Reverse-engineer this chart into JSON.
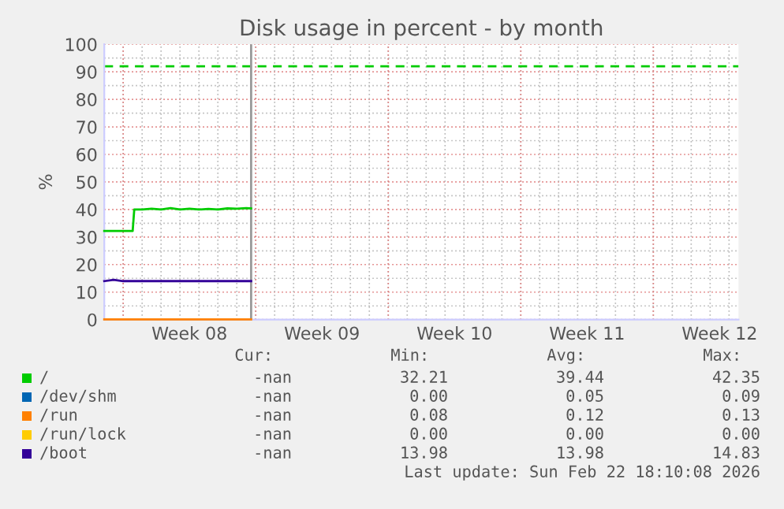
{
  "chart_data": {
    "type": "line",
    "title": "Disk usage in percent - by month",
    "ylabel": "%",
    "x": [
      "2026-02-15T00:00",
      "2026-02-15T12:00",
      "2026-02-16T00:00",
      "2026-02-16T12:00",
      "2026-02-16T14:00",
      "2026-02-17T00:00",
      "2026-02-17T12:00",
      "2026-02-18T00:00",
      "2026-02-18T12:00",
      "2026-02-19T00:00",
      "2026-02-19T12:00",
      "2026-02-20T00:00",
      "2026-02-20T12:00",
      "2026-02-21T00:00",
      "2026-02-21T12:00",
      "2026-02-22T00:00",
      "2026-02-22T12:00",
      "2026-02-22T18:10"
    ],
    "series": [
      {
        "name": "/",
        "color": "#00cc00",
        "values": [
          32.2,
          32.2,
          32.2,
          32.2,
          40,
          40,
          40.3,
          40,
          40.5,
          40,
          40.3,
          40,
          40.2,
          40,
          40.4,
          40.3,
          40.5,
          40.4
        ]
      },
      {
        "name": "/dev/shm",
        "color": "#0066b3",
        "values": [
          null,
          null,
          null,
          null,
          null,
          null,
          null,
          null,
          null,
          null,
          null,
          null,
          null,
          null,
          null,
          null,
          null,
          null
        ]
      },
      {
        "name": "/run",
        "color": "#ff8000",
        "values": [
          0.1,
          0.1,
          0.1,
          0.1,
          0.1,
          0.1,
          0.1,
          0.1,
          0.1,
          0.1,
          0.1,
          0.1,
          0.1,
          0.1,
          0.1,
          0.1,
          0.1,
          0.1
        ]
      },
      {
        "name": "/run/lock",
        "color": "#ffcc00",
        "values": [
          null,
          null,
          null,
          null,
          null,
          null,
          null,
          null,
          null,
          null,
          null,
          null,
          null,
          null,
          null,
          null,
          null,
          null
        ]
      },
      {
        "name": "/boot",
        "color": "#330099",
        "values": [
          14,
          14.5,
          14,
          14,
          14,
          14,
          14,
          14,
          14,
          14,
          14,
          14,
          14,
          14,
          14,
          14,
          14,
          14
        ]
      }
    ],
    "xlim": [
      "2026-02-15T00:00",
      "2026-03-20T12:00"
    ],
    "xticks": [
      {
        "value": "2026-02-16",
        "label": null
      },
      {
        "value": "2026-02-19T12:00",
        "label": "Week 08"
      },
      {
        "value": "2026-02-23",
        "label": null
      },
      {
        "value": "2026-02-26T12:00",
        "label": "Week 09"
      },
      {
        "value": "2026-03-02",
        "label": null
      },
      {
        "value": "2026-03-05T12:00",
        "label": "Week 10"
      },
      {
        "value": "2026-03-09",
        "label": null
      },
      {
        "value": "2026-03-12T12:00",
        "label": "Week 11"
      },
      {
        "value": "2026-03-16",
        "label": null
      },
      {
        "value": "2026-03-19T12:00",
        "label": "Week 12"
      }
    ],
    "ylim": [
      0,
      100
    ],
    "yticks": [
      0,
      10,
      20,
      30,
      40,
      50,
      60,
      70,
      80,
      90,
      100
    ],
    "grid": true,
    "legend": "bottom",
    "ref_lines": [
      {
        "axis": "y",
        "value": 92,
        "label": null,
        "color": "#00cc00",
        "line_style": "dashed"
      },
      {
        "axis": "x",
        "value": "2026-02-22T18:10",
        "label": null,
        "color": "#999999",
        "line_style": "solid"
      }
    ],
    "annotations": [
      "Cur:",
      "Min:",
      "Avg:",
      "Max:",
      "-nan",
      "32.21",
      "39.44",
      "42.35",
      "-nan",
      "0.00",
      "0.05",
      "0.09",
      "-nan",
      "0.08",
      "0.12",
      "0.13",
      "-nan",
      "0.00",
      "0.00",
      "0.00",
      "-nan",
      "13.98",
      "13.98",
      "14.83",
      "Last update: Sun Feb 22 18:10:08 2026"
    ]
  }
}
